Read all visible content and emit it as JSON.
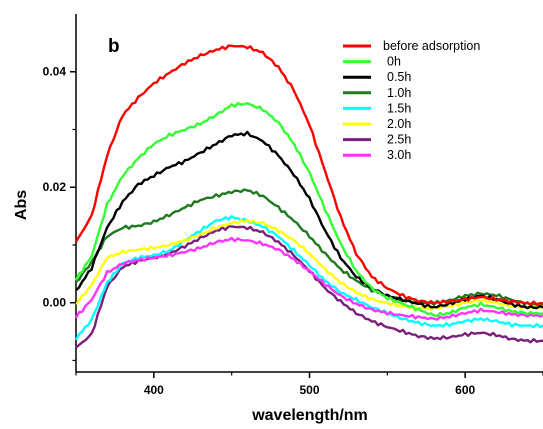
{
  "chart_data": {
    "type": "line",
    "panel_label": "b",
    "xlabel": "wavelength/nm",
    "ylabel": "Abs",
    "xlim": [
      350,
      650
    ],
    "ylim": [
      -0.012,
      0.05
    ],
    "xticks": [
      400,
      500,
      600
    ],
    "xtick_labels": [
      "400",
      "500",
      "600"
    ],
    "yticks": [
      0.0,
      0.02,
      0.04
    ],
    "ytick_labels": [
      "0.00",
      "0.02",
      "0.04"
    ],
    "grid": false,
    "legend_position": "top-right",
    "series": [
      {
        "name": "before adsorption",
        "color": "#ff0000",
        "points": [
          [
            350,
            0.0105
          ],
          [
            360,
            0.015
          ],
          [
            370,
            0.0255
          ],
          [
            380,
            0.0325
          ],
          [
            390,
            0.0355
          ],
          [
            400,
            0.038
          ],
          [
            410,
            0.0398
          ],
          [
            420,
            0.0415
          ],
          [
            430,
            0.0428
          ],
          [
            440,
            0.0438
          ],
          [
            450,
            0.0445
          ],
          [
            460,
            0.0443
          ],
          [
            470,
            0.0433
          ],
          [
            480,
            0.0408
          ],
          [
            490,
            0.0368
          ],
          [
            500,
            0.0308
          ],
          [
            510,
            0.0228
          ],
          [
            520,
            0.0148
          ],
          [
            530,
            0.0085
          ],
          [
            540,
            0.0045
          ],
          [
            550,
            0.0025
          ],
          [
            560,
            0.0012
          ],
          [
            570,
            0.0003
          ],
          [
            580,
            0.0
          ],
          [
            590,
            0.0002
          ],
          [
            600,
            0.0006
          ],
          [
            610,
            0.001
          ],
          [
            620,
            0.0006
          ],
          [
            630,
            0.0002
          ],
          [
            640,
            -0.0001
          ],
          [
            650,
            -0.0001
          ]
        ]
      },
      {
        "name": "0h",
        "color": "#33ff33",
        "points": [
          [
            350,
            0.004
          ],
          [
            360,
            0.008
          ],
          [
            370,
            0.017
          ],
          [
            380,
            0.022
          ],
          [
            390,
            0.025
          ],
          [
            400,
            0.0275
          ],
          [
            410,
            0.029
          ],
          [
            420,
            0.03
          ],
          [
            430,
            0.031
          ],
          [
            440,
            0.0325
          ],
          [
            450,
            0.0342
          ],
          [
            460,
            0.0345
          ],
          [
            470,
            0.0335
          ],
          [
            480,
            0.0312
          ],
          [
            490,
            0.0275
          ],
          [
            500,
            0.0225
          ],
          [
            510,
            0.0162
          ],
          [
            520,
            0.0102
          ],
          [
            530,
            0.0055
          ],
          [
            540,
            0.0025
          ],
          [
            550,
            0.0008
          ],
          [
            560,
            -0.0002
          ],
          [
            570,
            -0.0012
          ],
          [
            580,
            -0.0022
          ],
          [
            590,
            -0.0018
          ],
          [
            600,
            -0.0008
          ],
          [
            610,
            -0.0003
          ],
          [
            620,
            -0.0008
          ],
          [
            630,
            -0.0015
          ],
          [
            640,
            -0.0018
          ],
          [
            650,
            -0.0018
          ]
        ]
      },
      {
        "name": "0.5h",
        "color": "#000000",
        "points": [
          [
            350,
            0.002
          ],
          [
            360,
            0.006
          ],
          [
            370,
            0.013
          ],
          [
            380,
            0.0175
          ],
          [
            390,
            0.0205
          ],
          [
            400,
            0.022
          ],
          [
            410,
            0.0235
          ],
          [
            420,
            0.0245
          ],
          [
            430,
            0.026
          ],
          [
            440,
            0.0275
          ],
          [
            450,
            0.029
          ],
          [
            460,
            0.0293
          ],
          [
            470,
            0.028
          ],
          [
            480,
            0.0255
          ],
          [
            490,
            0.0222
          ],
          [
            500,
            0.018
          ],
          [
            510,
            0.0125
          ],
          [
            520,
            0.0078
          ],
          [
            530,
            0.0045
          ],
          [
            540,
            0.0025
          ],
          [
            550,
            0.0012
          ],
          [
            560,
            0.0005
          ],
          [
            570,
            -0.0002
          ],
          [
            580,
            -0.0008
          ],
          [
            590,
            -0.0002
          ],
          [
            600,
            0.0006
          ],
          [
            610,
            0.0012
          ],
          [
            620,
            0.0006
          ],
          [
            630,
            -0.0003
          ],
          [
            640,
            -0.0008
          ],
          [
            650,
            -0.0008
          ]
        ]
      },
      {
        "name": "1.0h",
        "color": "#1f7a1f",
        "points": [
          [
            350,
            0.0035
          ],
          [
            360,
            0.007
          ],
          [
            370,
            0.0115
          ],
          [
            380,
            0.013
          ],
          [
            390,
            0.0133
          ],
          [
            400,
            0.014
          ],
          [
            410,
            0.0152
          ],
          [
            420,
            0.0165
          ],
          [
            430,
            0.0178
          ],
          [
            440,
            0.0185
          ],
          [
            450,
            0.0192
          ],
          [
            460,
            0.0195
          ],
          [
            470,
            0.0185
          ],
          [
            480,
            0.0165
          ],
          [
            490,
            0.0142
          ],
          [
            500,
            0.0115
          ],
          [
            510,
            0.0085
          ],
          [
            520,
            0.0058
          ],
          [
            530,
            0.0038
          ],
          [
            540,
            0.0022
          ],
          [
            550,
            0.0012
          ],
          [
            560,
            0.0004
          ],
          [
            570,
            0.0
          ],
          [
            580,
            -0.0001
          ],
          [
            590,
            0.0004
          ],
          [
            600,
            0.0012
          ],
          [
            610,
            0.0016
          ],
          [
            620,
            0.0013
          ],
          [
            630,
            0.0005
          ],
          [
            640,
            -0.0002
          ],
          [
            650,
            -0.0003
          ]
        ]
      },
      {
        "name": "1.5h",
        "color": "#00ffff",
        "points": [
          [
            350,
            -0.0062
          ],
          [
            360,
            -0.003
          ],
          [
            370,
            0.0035
          ],
          [
            380,
            0.0068
          ],
          [
            390,
            0.0078
          ],
          [
            400,
            0.0082
          ],
          [
            410,
            0.009
          ],
          [
            420,
            0.0108
          ],
          [
            430,
            0.0125
          ],
          [
            440,
            0.0142
          ],
          [
            450,
            0.0148
          ],
          [
            460,
            0.0142
          ],
          [
            470,
            0.0132
          ],
          [
            480,
            0.0115
          ],
          [
            490,
            0.009
          ],
          [
            500,
            0.0065
          ],
          [
            510,
            0.0038
          ],
          [
            520,
            0.0018
          ],
          [
            530,
            0.0005
          ],
          [
            540,
            -0.0008
          ],
          [
            550,
            -0.0018
          ],
          [
            560,
            -0.0028
          ],
          [
            570,
            -0.0035
          ],
          [
            580,
            -0.004
          ],
          [
            590,
            -0.0038
          ],
          [
            600,
            -0.0032
          ],
          [
            610,
            -0.0028
          ],
          [
            620,
            -0.0032
          ],
          [
            630,
            -0.0038
          ],
          [
            640,
            -0.004
          ],
          [
            650,
            -0.004
          ]
        ]
      },
      {
        "name": "2.0h",
        "color": "#ffff00",
        "points": [
          [
            350,
            -0.0002
          ],
          [
            360,
            0.003
          ],
          [
            370,
            0.0078
          ],
          [
            380,
            0.0088
          ],
          [
            390,
            0.0092
          ],
          [
            400,
            0.0095
          ],
          [
            410,
            0.01
          ],
          [
            420,
            0.0108
          ],
          [
            430,
            0.0118
          ],
          [
            440,
            0.013
          ],
          [
            450,
            0.0138
          ],
          [
            460,
            0.0142
          ],
          [
            470,
            0.0138
          ],
          [
            480,
            0.0125
          ],
          [
            490,
            0.0108
          ],
          [
            500,
            0.0085
          ],
          [
            510,
            0.0058
          ],
          [
            520,
            0.0035
          ],
          [
            530,
            0.0018
          ],
          [
            540,
            0.0006
          ],
          [
            550,
            -0.0001
          ],
          [
            560,
            -0.0006
          ],
          [
            570,
            -0.0009
          ],
          [
            580,
            -0.001
          ],
          [
            590,
            -0.0006
          ],
          [
            600,
            0.0
          ],
          [
            610,
            0.0004
          ],
          [
            620,
            0.0
          ],
          [
            630,
            -0.0006
          ],
          [
            640,
            -0.0008
          ],
          [
            650,
            -0.0008
          ]
        ]
      },
      {
        "name": "2.5h",
        "color": "#7a1f7a",
        "points": [
          [
            350,
            -0.0078
          ],
          [
            360,
            -0.0055
          ],
          [
            370,
            0.0028
          ],
          [
            380,
            0.0062
          ],
          [
            390,
            0.0072
          ],
          [
            400,
            0.0078
          ],
          [
            410,
            0.0085
          ],
          [
            420,
            0.0098
          ],
          [
            430,
            0.0112
          ],
          [
            440,
            0.0125
          ],
          [
            450,
            0.0132
          ],
          [
            460,
            0.013
          ],
          [
            470,
            0.0122
          ],
          [
            480,
            0.0105
          ],
          [
            490,
            0.0082
          ],
          [
            500,
            0.0055
          ],
          [
            510,
            0.0025
          ],
          [
            520,
            0.0002
          ],
          [
            530,
            -0.0018
          ],
          [
            540,
            -0.0032
          ],
          [
            550,
            -0.0042
          ],
          [
            560,
            -0.005
          ],
          [
            570,
            -0.0058
          ],
          [
            580,
            -0.0062
          ],
          [
            590,
            -0.006
          ],
          [
            600,
            -0.0055
          ],
          [
            610,
            -0.0052
          ],
          [
            620,
            -0.0056
          ],
          [
            630,
            -0.0063
          ],
          [
            640,
            -0.0066
          ],
          [
            650,
            -0.0066
          ]
        ]
      },
      {
        "name": "3.0h",
        "color": "#ff33ff",
        "points": [
          [
            350,
            -0.0025
          ],
          [
            360,
            0.0005
          ],
          [
            370,
            0.0052
          ],
          [
            380,
            0.0068
          ],
          [
            390,
            0.0074
          ],
          [
            400,
            0.0078
          ],
          [
            410,
            0.0082
          ],
          [
            420,
            0.0088
          ],
          [
            430,
            0.0095
          ],
          [
            440,
            0.0105
          ],
          [
            450,
            0.011
          ],
          [
            460,
            0.0108
          ],
          [
            470,
            0.0102
          ],
          [
            480,
            0.0092
          ],
          [
            490,
            0.0075
          ],
          [
            500,
            0.0055
          ],
          [
            510,
            0.0032
          ],
          [
            520,
            0.0012
          ],
          [
            530,
            -0.0002
          ],
          [
            540,
            -0.0012
          ],
          [
            550,
            -0.0018
          ],
          [
            560,
            -0.0022
          ],
          [
            570,
            -0.0025
          ],
          [
            580,
            -0.0028
          ],
          [
            590,
            -0.0024
          ],
          [
            600,
            -0.0018
          ],
          [
            610,
            -0.0013
          ],
          [
            620,
            -0.0016
          ],
          [
            630,
            -0.002
          ],
          [
            640,
            -0.0022
          ],
          [
            650,
            -0.0022
          ]
        ]
      }
    ]
  }
}
